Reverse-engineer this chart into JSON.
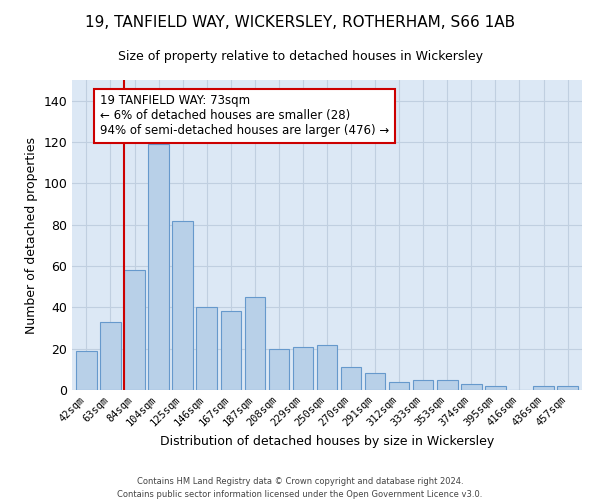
{
  "title": "19, TANFIELD WAY, WICKERSLEY, ROTHERHAM, S66 1AB",
  "subtitle": "Size of property relative to detached houses in Wickersley",
  "xlabel": "Distribution of detached houses by size in Wickersley",
  "ylabel": "Number of detached properties",
  "categories": [
    "42sqm",
    "63sqm",
    "84sqm",
    "104sqm",
    "125sqm",
    "146sqm",
    "167sqm",
    "187sqm",
    "208sqm",
    "229sqm",
    "250sqm",
    "270sqm",
    "291sqm",
    "312sqm",
    "333sqm",
    "353sqm",
    "374sqm",
    "395sqm",
    "416sqm",
    "436sqm",
    "457sqm"
  ],
  "values": [
    19,
    33,
    58,
    119,
    82,
    40,
    38,
    45,
    20,
    21,
    22,
    11,
    8,
    4,
    5,
    5,
    3,
    2,
    0,
    2,
    2
  ],
  "bar_color": "#b8d0e8",
  "bar_edge_color": "#6699cc",
  "marker_color": "#cc0000",
  "annotation_text": "19 TANFIELD WAY: 73sqm\n← 6% of detached houses are smaller (28)\n94% of semi-detached houses are larger (476) →",
  "annotation_box_color": "#ffffff",
  "annotation_box_edge": "#cc0000",
  "ylim": [
    0,
    150
  ],
  "yticks": [
    0,
    20,
    40,
    60,
    80,
    100,
    120,
    140
  ],
  "background_color": "#dce8f5",
  "grid_color": "#c0cfe0",
  "footer_line1": "Contains HM Land Registry data © Crown copyright and database right 2024.",
  "footer_line2": "Contains public sector information licensed under the Open Government Licence v3.0."
}
